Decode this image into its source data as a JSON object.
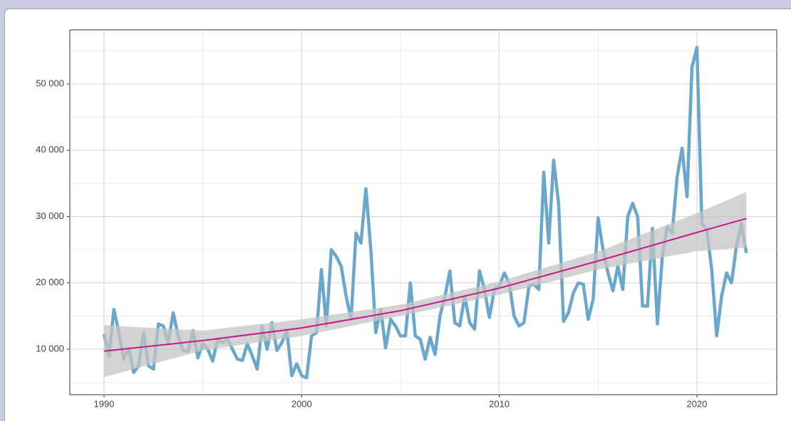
{
  "chart_data": {
    "type": "line",
    "x": [
      1990,
      1990.25,
      1990.5,
      1990.75,
      1991,
      1991.25,
      1991.5,
      1991.75,
      1992,
      1992.25,
      1992.5,
      1992.75,
      1993,
      1993.25,
      1993.5,
      1993.75,
      1994,
      1994.25,
      1994.5,
      1994.75,
      1995,
      1995.25,
      1995.5,
      1995.75,
      1996,
      1996.25,
      1996.5,
      1996.75,
      1997,
      1997.25,
      1997.5,
      1997.75,
      1998,
      1998.25,
      1998.5,
      1998.75,
      1999,
      1999.25,
      1999.5,
      1999.75,
      2000,
      2000.25,
      2000.5,
      2000.75,
      2001,
      2001.25,
      2001.5,
      2001.75,
      2002,
      2002.25,
      2002.5,
      2002.75,
      2003,
      2003.25,
      2003.5,
      2003.75,
      2004,
      2004.25,
      2004.5,
      2004.75,
      2005,
      2005.25,
      2005.5,
      2005.75,
      2006,
      2006.25,
      2006.5,
      2006.75,
      2007,
      2007.25,
      2007.5,
      2007.75,
      2008,
      2008.25,
      2008.5,
      2008.75,
      2009,
      2009.25,
      2009.5,
      2009.75,
      2010,
      2010.25,
      2010.5,
      2010.75,
      2011,
      2011.25,
      2011.5,
      2011.75,
      2012,
      2012.25,
      2012.5,
      2012.75,
      2013,
      2013.25,
      2013.5,
      2013.75,
      2014,
      2014.25,
      2014.5,
      2014.75,
      2015,
      2015.25,
      2015.5,
      2015.75,
      2016,
      2016.25,
      2016.5,
      2016.75,
      2017,
      2017.25,
      2017.5,
      2017.75,
      2018,
      2018.25,
      2018.5,
      2018.75,
      2019,
      2019.25,
      2019.5,
      2019.75,
      2020,
      2020.25,
      2020.5,
      2020.75,
      2021,
      2021.25,
      2021.5,
      2021.75,
      2022,
      2022.25,
      2022.5
    ],
    "series": [
      {
        "color": "#6aa7cc",
        "values": [
          12300,
          9000,
          16000,
          12500,
          8500,
          10200,
          6500,
          7500,
          12500,
          7500,
          7000,
          13800,
          13500,
          11000,
          15500,
          12000,
          9800,
          9700,
          12800,
          8700,
          10800,
          10000,
          8200,
          11500,
          11000,
          11500,
          10000,
          8500,
          8300,
          10800,
          9000,
          7000,
          13500,
          10000,
          14000,
          9800,
          11000,
          12800,
          6000,
          7800,
          6000,
          5700,
          12000,
          12500,
          22000,
          13500,
          25000,
          24000,
          22500,
          18000,
          14500,
          27500,
          26000,
          34200,
          25000,
          12500,
          16000,
          10200,
          14500,
          13500,
          12000,
          12000,
          20000,
          12000,
          11500,
          8500,
          11800,
          9200,
          15000,
          18000,
          21800,
          14000,
          13500,
          18000,
          14000,
          13000,
          21800,
          19000,
          14800,
          19000,
          19500,
          21500,
          20000,
          15000,
          13500,
          14000,
          19500,
          19800,
          19000,
          36700,
          26000,
          38500,
          32000,
          14200,
          15500,
          18500,
          20000,
          19800,
          14500,
          17500,
          29800,
          25000,
          21500,
          18800,
          22500,
          19000,
          30000,
          32000,
          30000,
          16500,
          16500,
          28200,
          13800,
          24000,
          28500,
          27500,
          36000,
          40300,
          33000,
          52500,
          55500,
          29000,
          28000,
          22000,
          12000,
          18000,
          21500,
          20000,
          25500,
          29000,
          24500
        ]
      }
    ],
    "trend": {
      "color": "#c8168c",
      "band_color": "#c4c4c4",
      "x": [
        1990,
        1995,
        2000,
        2005,
        2010,
        2015,
        2020,
        2022.5
      ],
      "values": [
        9700,
        11300,
        13200,
        15800,
        19200,
        23300,
        27600,
        29700
      ],
      "lower": [
        5800,
        9800,
        12000,
        15000,
        18200,
        22000,
        24800,
        25300
      ],
      "upper": [
        13600,
        12800,
        14500,
        16700,
        20200,
        24700,
        30500,
        33700
      ]
    },
    "xlim": [
      1988.27,
      2024.04
    ],
    "ylim": [
      3137,
      58150
    ],
    "xticks": [
      1990,
      2000,
      2010,
      2020
    ],
    "yticks": [
      {
        "value": 10000,
        "label": "10 000"
      },
      {
        "value": 20000,
        "label": "20 000"
      },
      {
        "value": 30000,
        "label": "30 000"
      },
      {
        "value": 40000,
        "label": "40 000"
      },
      {
        "value": 50000,
        "label": "50 000"
      }
    ],
    "xminor": [
      1995,
      2005,
      2015
    ],
    "yminor": [
      5000,
      15000,
      25000,
      35000,
      45000,
      55000
    ],
    "grid": true
  }
}
